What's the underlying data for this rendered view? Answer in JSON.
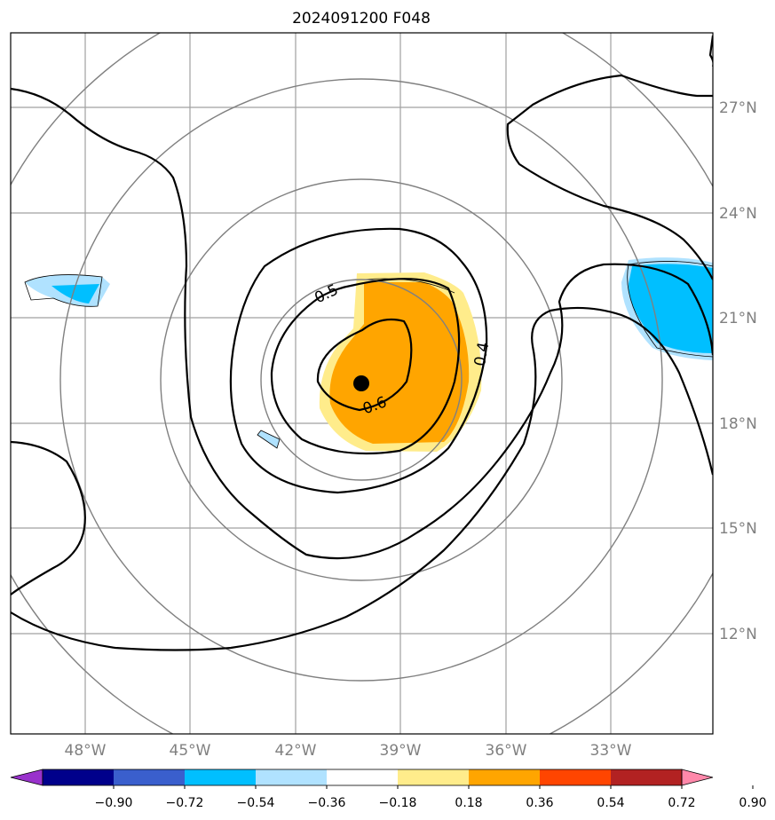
{
  "title": "2024091200 F048",
  "map": {
    "lat_labels": [
      "27°N",
      "24°N",
      "21°N",
      "18°N",
      "15°N",
      "12°N"
    ],
    "lon_labels": [
      "48°W",
      "45°W",
      "42°W",
      "39°W",
      "36°W",
      "33°W"
    ],
    "lat_range": [
      9.5,
      29.5
    ],
    "lon_range": [
      -50,
      -30
    ],
    "storm_center": {
      "lat": 19.0,
      "lon": -40.1
    },
    "contour_labels": [
      "0.5",
      "0.6",
      "0.4"
    ],
    "range_rings_color": "#808080",
    "grid_color": "#a0a0a0"
  },
  "colorbar": {
    "tick_labels": [
      "−0.90",
      "−0.72",
      "−0.54",
      "−0.36",
      "−0.18",
      "0.18",
      "0.36",
      "0.54",
      "0.72",
      "0.90"
    ],
    "colors": [
      "#9932cc",
      "#00008b",
      "#3a5fcd",
      "#00bfff",
      "#b0e2ff",
      "#ffffff",
      "#ffec8b",
      "#ffa500",
      "#ff4500",
      "#b22222",
      "#ff88aa"
    ]
  }
}
